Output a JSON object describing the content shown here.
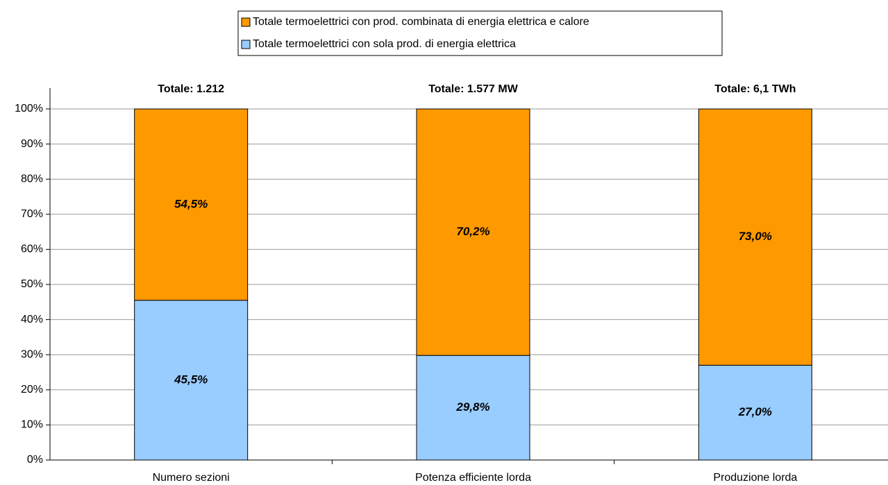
{
  "chart_data": {
    "type": "stacked_bar",
    "categories": [
      "Numero sezioni",
      "Potenza efficiente lorda",
      "Produzione lorda"
    ],
    "annotations": [
      "Totale: 1.212",
      "Totale: 1.577 MW",
      "Totale: 6,1 TWh"
    ],
    "series": [
      {
        "name": "Totale termoelettrici con sola prod. di energia elettrica",
        "color": "#99ccff",
        "values": [
          45.5,
          29.8,
          27.0
        ],
        "value_labels": [
          "45,5%",
          "29,8%",
          "27,0%"
        ]
      },
      {
        "name": "Totale termoelettrici con prod. combinata di energia elettrica e calore",
        "color": "#ff9900",
        "values": [
          54.5,
          70.2,
          73.0
        ],
        "value_labels": [
          "54,5%",
          "70,2%",
          "73,0%"
        ]
      }
    ],
    "ylim": [
      0,
      100
    ],
    "yticks": [
      {
        "value": 0,
        "label": "0%"
      },
      {
        "value": 10,
        "label": "10%"
      },
      {
        "value": 20,
        "label": "20%"
      },
      {
        "value": 30,
        "label": "30%"
      },
      {
        "value": 40,
        "label": "40%"
      },
      {
        "value": 50,
        "label": "50%"
      },
      {
        "value": 60,
        "label": "60%"
      },
      {
        "value": 70,
        "label": "70%"
      },
      {
        "value": 80,
        "label": "80%"
      },
      {
        "value": 90,
        "label": "90%"
      },
      {
        "value": 100,
        "label": "100%"
      }
    ],
    "grid": true
  }
}
